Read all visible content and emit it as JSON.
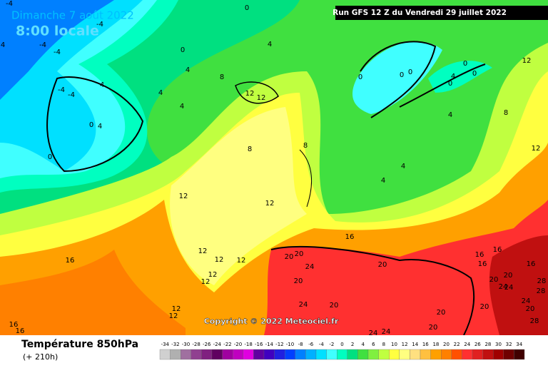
{
  "header": {
    "date": "Dimanche 7 août 2022",
    "time": "8:00 locale",
    "run": "Run GFS 12 Z du Vendredi 29 juillet 2022"
  },
  "copyright": "Copyright © 2022 Meteociel.fr",
  "footer": {
    "title": "Température 850hPa",
    "lead": "(+ 210h)"
  },
  "legend": {
    "ticks": [
      -34,
      -32,
      -30,
      -28,
      -26,
      -24,
      -22,
      -20,
      -18,
      -16,
      -14,
      -12,
      -10,
      -8,
      -6,
      -4,
      -2,
      0,
      2,
      4,
      6,
      8,
      10,
      12,
      14,
      16,
      18,
      20,
      22,
      24,
      26,
      28,
      30,
      32,
      34
    ],
    "colors": [
      "#d0d0d0",
      "#b0b0b0",
      "#a070a0",
      "#904090",
      "#802080",
      "#600060",
      "#a000a0",
      "#c000c0",
      "#e000e0",
      "#6000a0",
      "#4000c0",
      "#2020e0",
      "#0040ff",
      "#0080ff",
      "#00b0ff",
      "#00e0ff",
      "#40ffff",
      "#00ffc0",
      "#00e080",
      "#40e040",
      "#80f040",
      "#c0ff40",
      "#ffff40",
      "#ffff80",
      "#ffe080",
      "#ffc040",
      "#ffa000",
      "#ff8000",
      "#ff5000",
      "#ff3030",
      "#e02020",
      "#c01010",
      "#a00000",
      "#700000",
      "#400000"
    ]
  },
  "contour_labels": [
    16,
    16,
    16,
    12,
    12,
    12,
    12,
    12,
    12,
    12,
    12,
    12,
    16,
    20,
    20,
    24,
    20,
    20,
    24,
    20,
    20,
    20,
    24,
    24,
    16,
    16,
    16,
    16,
    20,
    20,
    24,
    24,
    24,
    20,
    28,
    28,
    28,
    20,
    12,
    12,
    8,
    8,
    8,
    8,
    12,
    12,
    4,
    0,
    0,
    0,
    0,
    0,
    0,
    0,
    0,
    4,
    4,
    4,
    4,
    4,
    4,
    4,
    4,
    0,
    -4,
    -4,
    -4,
    -4,
    4,
    0,
    4,
    -4,
    -4
  ]
}
